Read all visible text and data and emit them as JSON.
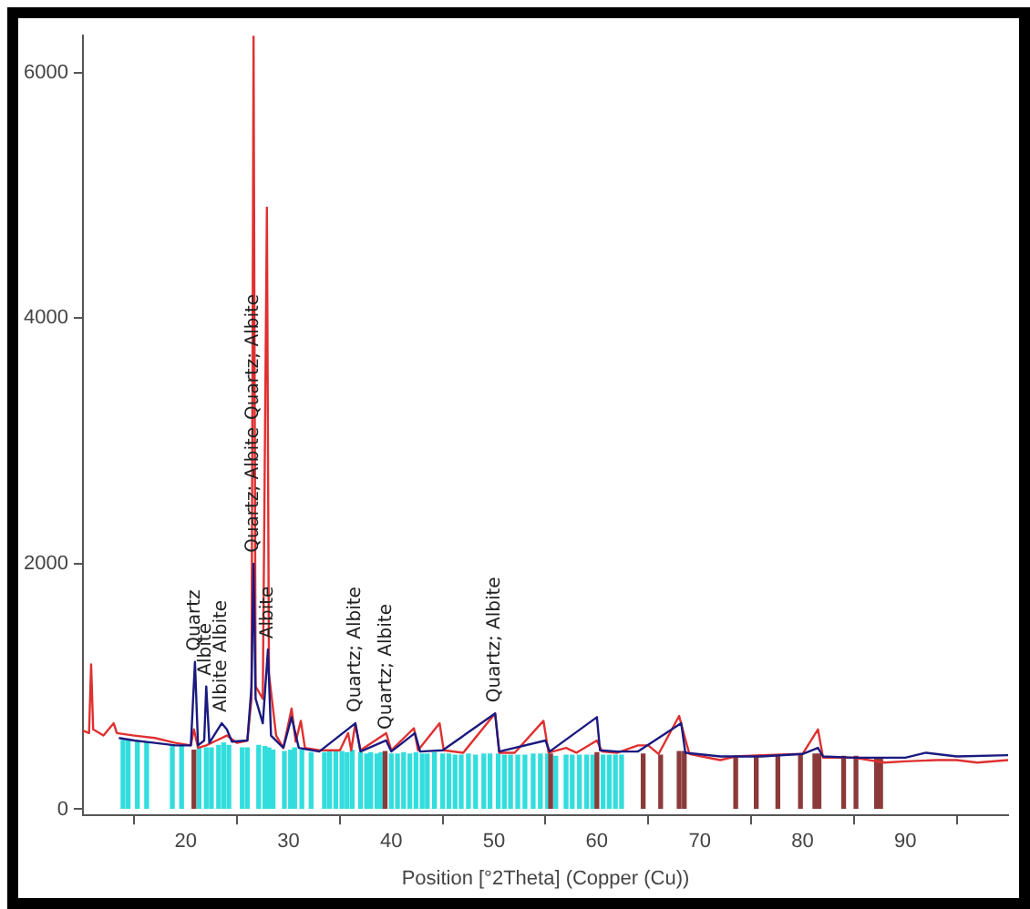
{
  "chart_data": {
    "type": "line",
    "xlabel": "Position [°2Theta] (Copper (Cu))",
    "xlim": [
      10,
      100
    ],
    "xticks": [
      20,
      30,
      40,
      50,
      60,
      70,
      80,
      90
    ],
    "ylim": [
      -50,
      6300
    ],
    "yticks": [
      0,
      2000,
      4000,
      6000
    ],
    "grid": false,
    "legend": false,
    "marker": "none",
    "series": [
      {
        "type": "bar",
        "color": "#33dddd",
        "x": [
          13.9,
          14.4,
          15.3,
          16.2,
          18.7,
          19.6,
          21.3,
          22.0,
          22.5,
          23.2,
          23.7,
          24.2,
          25.5,
          26.0,
          27.1,
          27.7,
          28.1,
          28.5,
          29.6,
          30.2,
          30.6,
          31.3,
          32.2,
          33.5,
          34.0,
          34.6,
          35.2,
          35.7,
          36.2,
          37.0,
          37.6,
          38.0,
          38.6,
          39.0,
          40.0,
          40.6,
          41.2,
          41.8,
          42.4,
          43.0,
          43.5,
          44.2,
          45.0,
          45.6,
          46.2,
          46.8,
          47.5,
          48.2,
          49.0,
          49.6,
          50.4,
          51.0,
          51.6,
          52.3,
          53.0,
          53.8,
          54.5,
          55.2,
          56.0,
          57.0,
          57.6,
          58.3,
          59.0,
          59.6,
          60.6,
          61.2,
          61.8,
          62.4
        ],
        "values": [
          560,
          560,
          550,
          540,
          520,
          510,
          500,
          500,
          500,
          520,
          540,
          520,
          500,
          500,
          520,
          510,
          500,
          480,
          470,
          480,
          500,
          480,
          460,
          460,
          470,
          480,
          470,
          460,
          480,
          460,
          450,
          460,
          450,
          460,
          450,
          450,
          460,
          450,
          460,
          450,
          450,
          460,
          450,
          450,
          440,
          440,
          450,
          440,
          450,
          450,
          450,
          440,
          440,
          440,
          440,
          450,
          450,
          450,
          430,
          440,
          440,
          440,
          440,
          440,
          440,
          440,
          440,
          440
        ]
      },
      {
        "type": "bar",
        "color": "#8b3a3a",
        "x": [
          20.8,
          39.4,
          55.5,
          60.0,
          64.5,
          66.2,
          68.0,
          68.5,
          73.5,
          75.5,
          77.6,
          79.8,
          81.2,
          81.6,
          84.0,
          85.2,
          87.2,
          87.6
        ],
        "values": [
          480,
          470,
          450,
          460,
          450,
          440,
          470,
          470,
          430,
          430,
          430,
          440,
          450,
          450,
          430,
          430,
          420,
          420
        ]
      },
      {
        "color": "#e03030",
        "x": [
          10,
          10.6,
          10.8,
          11,
          12,
          13,
          13.3,
          15,
          17,
          19,
          20.5,
          20.8,
          21.2,
          22,
          23,
          24,
          25,
          26,
          26.4,
          26.6,
          26.8,
          27.5,
          27.9,
          28.1,
          28.8,
          29.5,
          30.3,
          30.7,
          31.2,
          31.6,
          33,
          35,
          35.8,
          36.1,
          36.5,
          37,
          39.5,
          40,
          42.2,
          42.6,
          44.7,
          45.1,
          47,
          50.1,
          50.5,
          52,
          54.8,
          55.3,
          57,
          58,
          60,
          60.5,
          62,
          64,
          65,
          66,
          68,
          68.5,
          69,
          72,
          73.5,
          76,
          80,
          81.5,
          82,
          85,
          88,
          90,
          93,
          95,
          97,
          100
        ],
        "values": [
          640,
          620,
          1180,
          650,
          600,
          700,
          620,
          600,
          580,
          540,
          520,
          650,
          500,
          520,
          560,
          600,
          540,
          560,
          900,
          6300,
          1000,
          900,
          4900,
          1100,
          600,
          500,
          820,
          550,
          720,
          500,
          480,
          480,
          620,
          480,
          700,
          480,
          620,
          480,
          660,
          480,
          700,
          480,
          460,
          780,
          460,
          460,
          720,
          460,
          500,
          460,
          560,
          470,
          460,
          520,
          520,
          450,
          760,
          600,
          450,
          400,
          430,
          440,
          450,
          650,
          420,
          420,
          380,
          390,
          400,
          400,
          380,
          400
        ]
      },
      {
        "color": "#1a1a80",
        "x": [
          13.5,
          15,
          17,
          19,
          20.5,
          20.9,
          21.2,
          21.8,
          22.0,
          22.3,
          23.5,
          24,
          24.5,
          26,
          26.4,
          26.6,
          26.8,
          27.5,
          28,
          28.3,
          29.5,
          30.3,
          31,
          33,
          36.5,
          37,
          39.5,
          40,
          42.3,
          42.8,
          45,
          50.1,
          50.5,
          55,
          55.4,
          60,
          60.3,
          62,
          64,
          68.2,
          68.6,
          72,
          76,
          80,
          81.5,
          82,
          85,
          90,
          92,
          95,
          100
        ],
        "values": [
          580,
          560,
          540,
          520,
          520,
          1200,
          520,
          560,
          1000,
          540,
          700,
          650,
          550,
          560,
          1000,
          2000,
          900,
          700,
          1300,
          600,
          500,
          750,
          500,
          470,
          700,
          470,
          560,
          470,
          620,
          470,
          480,
          780,
          470,
          560,
          470,
          750,
          480,
          470,
          470,
          700,
          460,
          430,
          430,
          450,
          500,
          430,
          420,
          420,
          460,
          430,
          440
        ]
      }
    ],
    "annotations": [
      {
        "text": "Quartz",
        "x": 20.9,
        "y": 1200
      },
      {
        "text": "Albite",
        "x": 22.0,
        "y": 1000
      },
      {
        "text": "Albite",
        "x": 23.5,
        "y": 700
      },
      "Albite",
      {
        "text": "Quartz; Albite",
        "x": 26.6,
        "y": 2000
      },
      "Quartz; Albite",
      {
        "text": "Albite",
        "x": 28,
        "y": 1300
      },
      {
        "text": "Quartz; Albite",
        "x": 36.5,
        "y": 700
      },
      {
        "text": "Quartz; Albite",
        "x": 39.5,
        "y": 560
      },
      {
        "text": "Quartz; Albite",
        "x": 50.1,
        "y": 780
      }
    ]
  }
}
